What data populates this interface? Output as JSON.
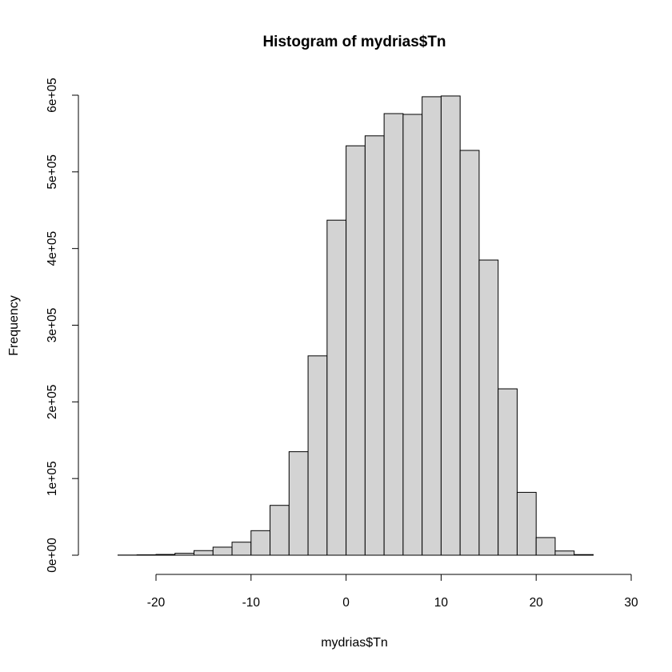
{
  "chart_data": {
    "type": "bar",
    "title": "Histogram of mydrias$Tn",
    "xlabel": "mydrias$Tn",
    "ylabel": "Frequency",
    "xlim": [
      -26,
      28
    ],
    "ylim": [
      0,
      600000
    ],
    "bin_width": 2,
    "x_ticks": [
      -20,
      -10,
      0,
      10,
      20,
      30
    ],
    "y_ticks": [
      0,
      100000,
      200000,
      300000,
      400000,
      500000,
      600000
    ],
    "x_tick_labels": [
      "-20",
      "-10",
      "0",
      "10",
      "20",
      "30"
    ],
    "y_tick_labels": [
      "0e+00",
      "1e+05",
      "2e+05",
      "3e+05",
      "4e+05",
      "5e+05",
      "6e+05"
    ],
    "bins": [
      {
        "start": -26,
        "end": -24,
        "value": 0
      },
      {
        "start": -24,
        "end": -22,
        "value": 200
      },
      {
        "start": -22,
        "end": -20,
        "value": 500
      },
      {
        "start": -20,
        "end": -18,
        "value": 1000
      },
      {
        "start": -18,
        "end": -16,
        "value": 2500
      },
      {
        "start": -16,
        "end": -14,
        "value": 6000
      },
      {
        "start": -14,
        "end": -12,
        "value": 10500
      },
      {
        "start": -12,
        "end": -10,
        "value": 17000
      },
      {
        "start": -10,
        "end": -8,
        "value": 32000
      },
      {
        "start": -8,
        "end": -6,
        "value": 65000
      },
      {
        "start": -6,
        "end": -4,
        "value": 135000
      },
      {
        "start": -4,
        "end": -2,
        "value": 260000
      },
      {
        "start": -2,
        "end": 0,
        "value": 437000
      },
      {
        "start": 0,
        "end": 2,
        "value": 534000
      },
      {
        "start": 2,
        "end": 4,
        "value": 547000
      },
      {
        "start": 4,
        "end": 6,
        "value": 576000
      },
      {
        "start": 6,
        "end": 8,
        "value": 575000
      },
      {
        "start": 8,
        "end": 10,
        "value": 598000
      },
      {
        "start": 10,
        "end": 12,
        "value": 599000
      },
      {
        "start": 12,
        "end": 14,
        "value": 528000
      },
      {
        "start": 14,
        "end": 16,
        "value": 385000
      },
      {
        "start": 16,
        "end": 18,
        "value": 217000
      },
      {
        "start": 18,
        "end": 20,
        "value": 82000
      },
      {
        "start": 20,
        "end": 22,
        "value": 23000
      },
      {
        "start": 22,
        "end": 24,
        "value": 5500
      },
      {
        "start": 24,
        "end": 26,
        "value": 800
      },
      {
        "start": 26,
        "end": 28,
        "value": 0
      }
    ],
    "colors": {
      "bar_fill": "#d3d3d3",
      "bar_stroke": "#000000"
    },
    "grid": false
  }
}
